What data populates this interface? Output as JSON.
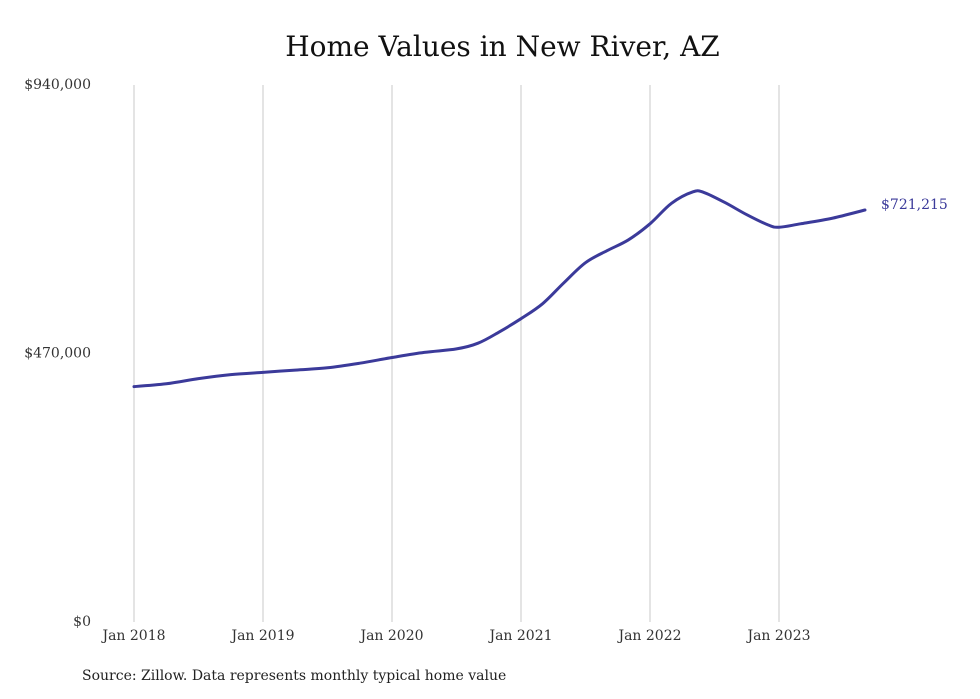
{
  "chart_data": {
    "type": "line",
    "title": "Home Values in New River, AZ",
    "xlabel": "",
    "ylabel": "",
    "ylim": [
      0,
      940000
    ],
    "y_ticks": [
      {
        "value": 0,
        "label": "$0"
      },
      {
        "value": 470000,
        "label": "$470,000"
      },
      {
        "value": 940000,
        "label": "$940,000"
      }
    ],
    "x_ticks": [
      "Jan 2018",
      "Jan 2019",
      "Jan 2020",
      "Jan 2021",
      "Jan 2022",
      "Jan 2023"
    ],
    "grid": "vertical",
    "series": [
      {
        "color": "#3b3a9a",
        "end_label": "$721,215",
        "points": [
          {
            "x": "2018-01",
            "y": 412000
          },
          {
            "x": "2018-04",
            "y": 417000
          },
          {
            "x": "2018-07",
            "y": 426000
          },
          {
            "x": "2018-10",
            "y": 433000
          },
          {
            "x": "2019-01",
            "y": 437000
          },
          {
            "x": "2019-04",
            "y": 441000
          },
          {
            "x": "2019-07",
            "y": 445000
          },
          {
            "x": "2019-10",
            "y": 453000
          },
          {
            "x": "2020-01",
            "y": 463000
          },
          {
            "x": "2020-04",
            "y": 472000
          },
          {
            "x": "2020-07",
            "y": 478000
          },
          {
            "x": "2020-09",
            "y": 488000
          },
          {
            "x": "2020-11",
            "y": 508000
          },
          {
            "x": "2021-01",
            "y": 531000
          },
          {
            "x": "2021-03",
            "y": 557000
          },
          {
            "x": "2021-05",
            "y": 594000
          },
          {
            "x": "2021-07",
            "y": 629000
          },
          {
            "x": "2021-09",
            "y": 650000
          },
          {
            "x": "2021-11",
            "y": 669000
          },
          {
            "x": "2022-01",
            "y": 697000
          },
          {
            "x": "2022-03",
            "y": 733000
          },
          {
            "x": "2022-05",
            "y": 753000
          },
          {
            "x": "2022-06",
            "y": 752000
          },
          {
            "x": "2022-08",
            "y": 734000
          },
          {
            "x": "2022-10",
            "y": 713000
          },
          {
            "x": "2022-12",
            "y": 695000
          },
          {
            "x": "2023-01",
            "y": 691000
          },
          {
            "x": "2023-03",
            "y": 697000
          },
          {
            "x": "2023-06",
            "y": 707000
          },
          {
            "x": "2023-09",
            "y": 721215
          }
        ]
      }
    ],
    "source_note": "Source: Zillow. Data represents monthly typical home value"
  }
}
